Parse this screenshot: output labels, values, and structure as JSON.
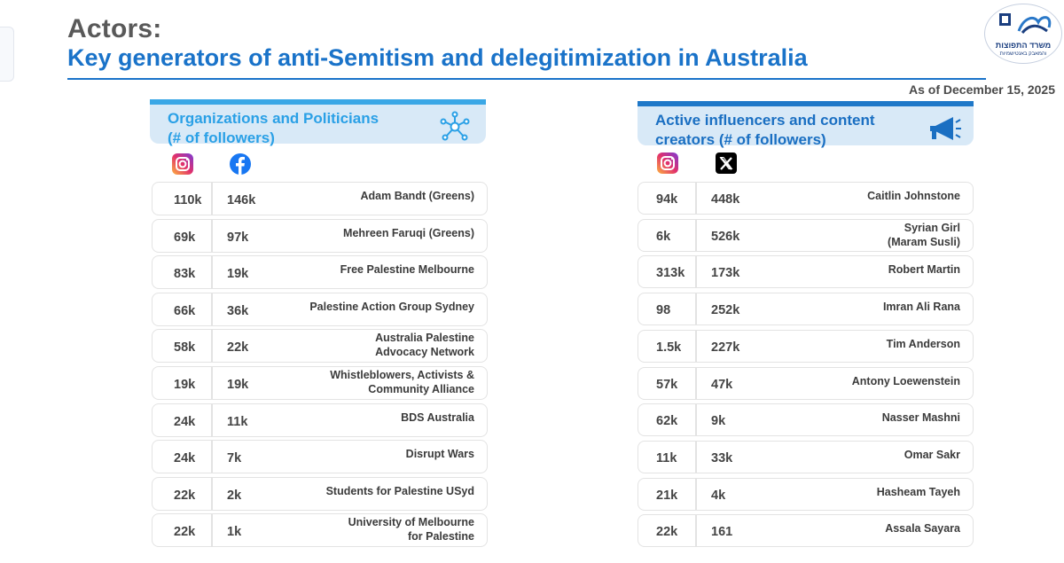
{
  "header": {
    "title_line1": "Actors:",
    "title_line2": "Key generators of anti-Semitism and delegitimization in Australia",
    "date": "As of December 15, 2025"
  },
  "logo": {
    "text_line1": "משרד התפוצות",
    "text_line2": "והמאבק באנטישמיות",
    "icon": "ministry-emblem-icon"
  },
  "left_panel": {
    "title_line1": "Organizations and Politicians",
    "title_line2": "(# of followers)",
    "header_icon": "network-icon",
    "columns": [
      "instagram-icon",
      "facebook-icon"
    ],
    "rows": [
      {
        "v1": "110k",
        "v2": "146k",
        "name": [
          "Adam Bandt (Greens)"
        ]
      },
      {
        "v1": "69k",
        "v2": "97k",
        "name": [
          "Mehreen Faruqi (Greens)"
        ]
      },
      {
        "v1": "83k",
        "v2": "19k",
        "name": [
          "Free Palestine Melbourne"
        ]
      },
      {
        "v1": "66k",
        "v2": "36k",
        "name": [
          "Palestine Action Group Sydney"
        ]
      },
      {
        "v1": "58k",
        "v2": "22k",
        "name": [
          "Australia Palestine",
          "Advocacy Network"
        ]
      },
      {
        "v1": "19k",
        "v2": "19k",
        "name": [
          "Whistleblowers, Activists &",
          "Community Alliance"
        ]
      },
      {
        "v1": "24k",
        "v2": "11k",
        "name": [
          "BDS Australia"
        ]
      },
      {
        "v1": "24k",
        "v2": "7k",
        "name": [
          "Disrupt Wars"
        ]
      },
      {
        "v1": "22k",
        "v2": "2k",
        "name": [
          "Students for Palestine USyd"
        ]
      },
      {
        "v1": "22k",
        "v2": "1k",
        "name": [
          "University of Melbourne",
          "for Palestine"
        ]
      }
    ]
  },
  "right_panel": {
    "title_line1": "Active influencers and content",
    "title_line2": "creators (# of followers)",
    "header_icon": "megaphone-icon",
    "columns": [
      "instagram-icon",
      "x-icon"
    ],
    "rows": [
      {
        "v1": "94k",
        "v2": "448k",
        "name": [
          "Caitlin Johnstone"
        ]
      },
      {
        "v1": "6k",
        "v2": "526k",
        "name": [
          "Syrian Girl",
          "(Maram Susli)"
        ]
      },
      {
        "v1": "313k",
        "v2": "173k",
        "name": [
          "Robert Martin"
        ]
      },
      {
        "v1": "98",
        "v2": "252k",
        "name": [
          "Imran Ali Rana"
        ]
      },
      {
        "v1": "1.5k",
        "v2": "227k",
        "name": [
          "Tim Anderson"
        ]
      },
      {
        "v1": "57k",
        "v2": "47k",
        "name": [
          "Antony Loewenstein"
        ]
      },
      {
        "v1": "62k",
        "v2": "9k",
        "name": [
          "Nasser Mashni"
        ]
      },
      {
        "v1": "11k",
        "v2": "33k",
        "name": [
          "Omar Sakr"
        ]
      },
      {
        "v1": "21k",
        "v2": "4k",
        "name": [
          "Hasheam Tayeh"
        ]
      },
      {
        "v1": "22k",
        "v2": "161",
        "name": [
          "Assala Sayara"
        ]
      }
    ]
  },
  "colors": {
    "title_gray": "#595959",
    "title_blue": "#1a73c9",
    "panel_bg": "#d8e9f7",
    "left_accent": "#3aa7e6",
    "right_accent": "#1f78c8",
    "facebook": "#1877f2"
  }
}
